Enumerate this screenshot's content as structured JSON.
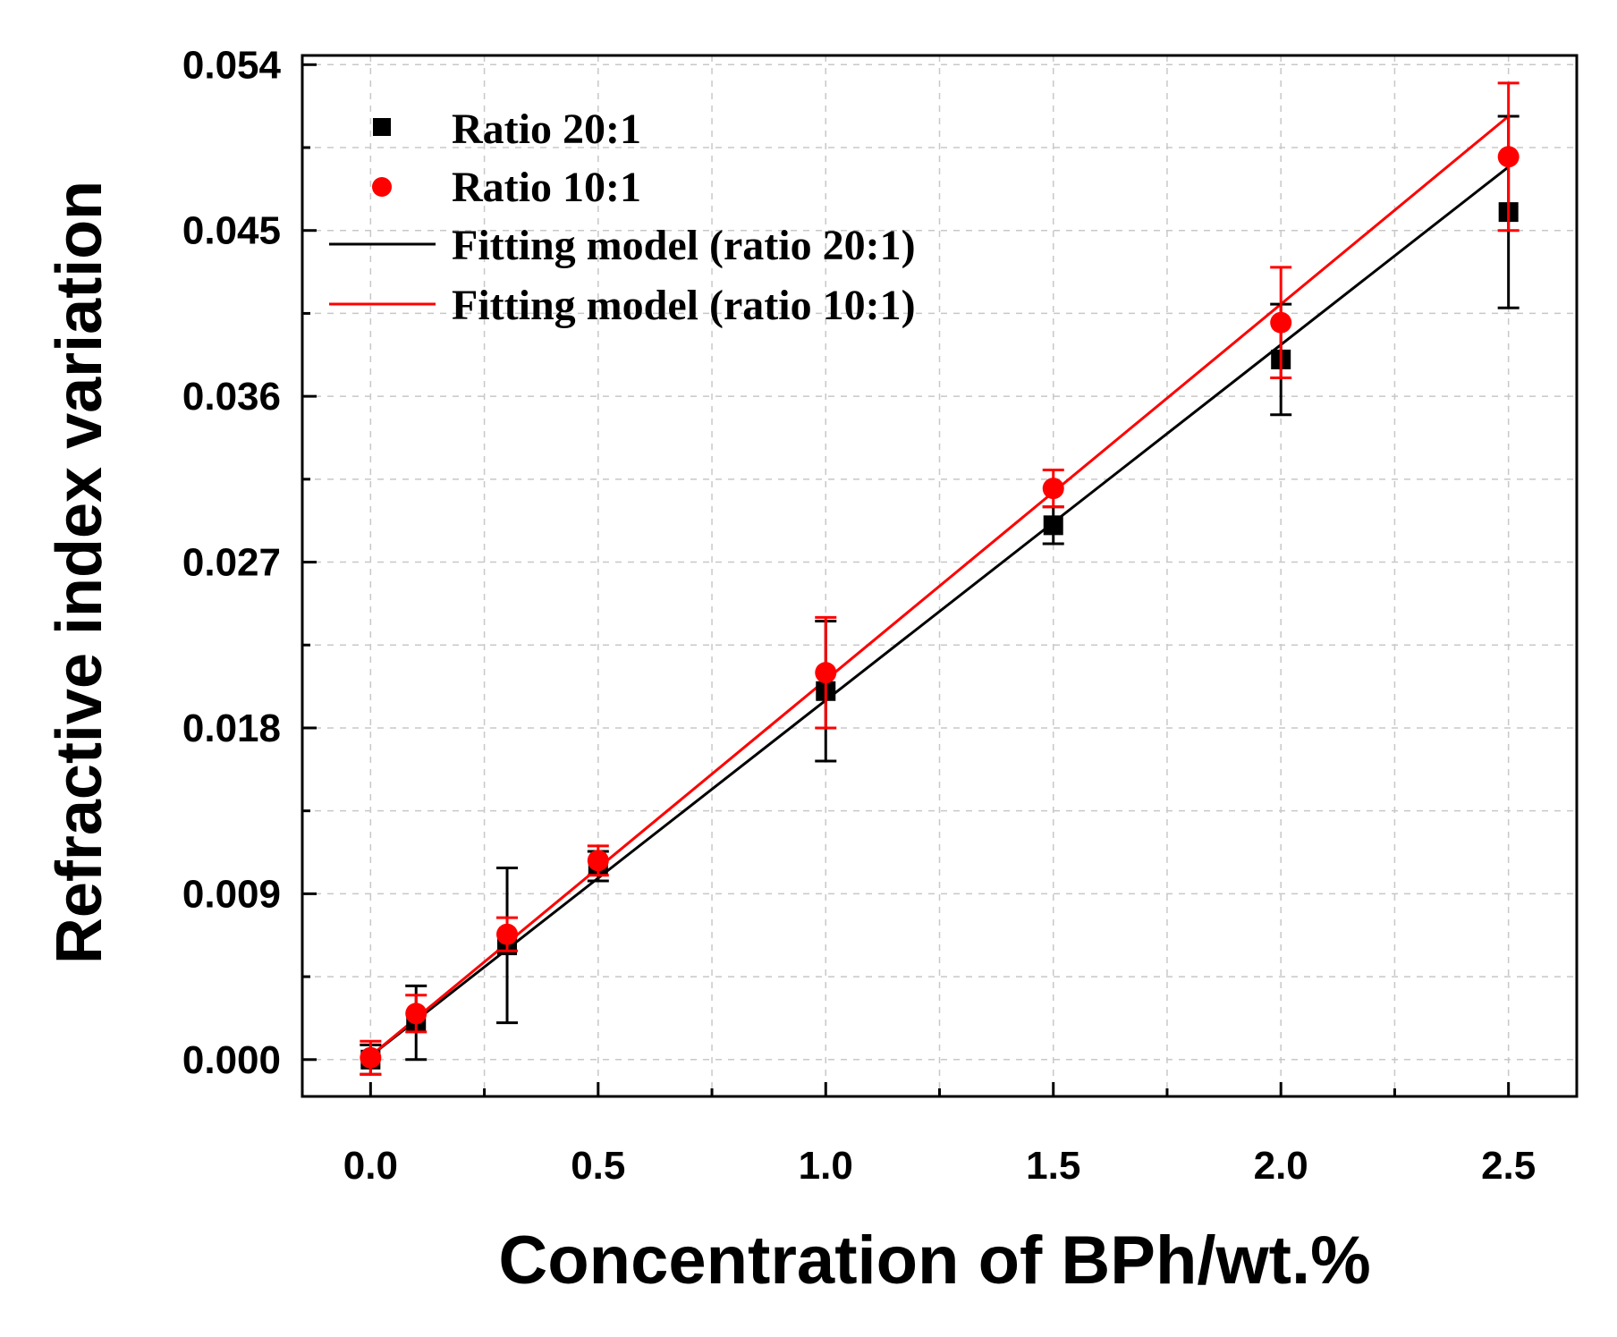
{
  "chart_data": {
    "type": "scatter",
    "xlabel": "Concentration of BPh/wt.%",
    "ylabel": "Refractive index variation",
    "xlim": [
      -0.15,
      2.65
    ],
    "ylim": [
      -0.002,
      0.0545
    ],
    "x_ticks": [
      "0.0",
      "0.5",
      "1.0",
      "1.5",
      "2.0",
      "2.5"
    ],
    "y_ticks": [
      "0.000",
      "0.009",
      "0.018",
      "0.027",
      "0.036",
      "0.045",
      "0.054"
    ],
    "grid": true,
    "legend_position": "top-left",
    "series": [
      {
        "name": "Ratio 20:1",
        "marker": "square",
        "color": "#000000",
        "x": [
          0,
          0.1,
          0.3,
          0.5,
          1.0,
          1.5,
          2.0,
          2.5
        ],
        "y": [
          0.0,
          0.002,
          0.0062,
          0.0105,
          0.02,
          0.029,
          0.038,
          0.046
        ],
        "err": [
          0.0008,
          0.002,
          0.0042,
          0.0008,
          0.0038,
          0.001,
          0.003,
          0.0052
        ]
      },
      {
        "name": "Ratio 10:1",
        "marker": "circle",
        "color": "#ff0000",
        "x": [
          0,
          0.1,
          0.3,
          0.5,
          1.0,
          1.5,
          2.0,
          2.5
        ],
        "y": [
          0.0001,
          0.0025,
          0.0068,
          0.0108,
          0.021,
          0.031,
          0.04,
          0.049
        ],
        "err": [
          0.0009,
          0.001,
          0.0009,
          0.0008,
          0.003,
          0.001,
          0.003,
          0.004
        ]
      }
    ],
    "fits": [
      {
        "name": "Fitting model (ratio 20:1)",
        "color": "#000000",
        "slope": 0.0193,
        "intercept": 0.0002
      },
      {
        "name": "Fitting model (ratio 10:1)",
        "color": "#ff0000",
        "slope": 0.0204,
        "intercept": 0.0002
      }
    ]
  }
}
